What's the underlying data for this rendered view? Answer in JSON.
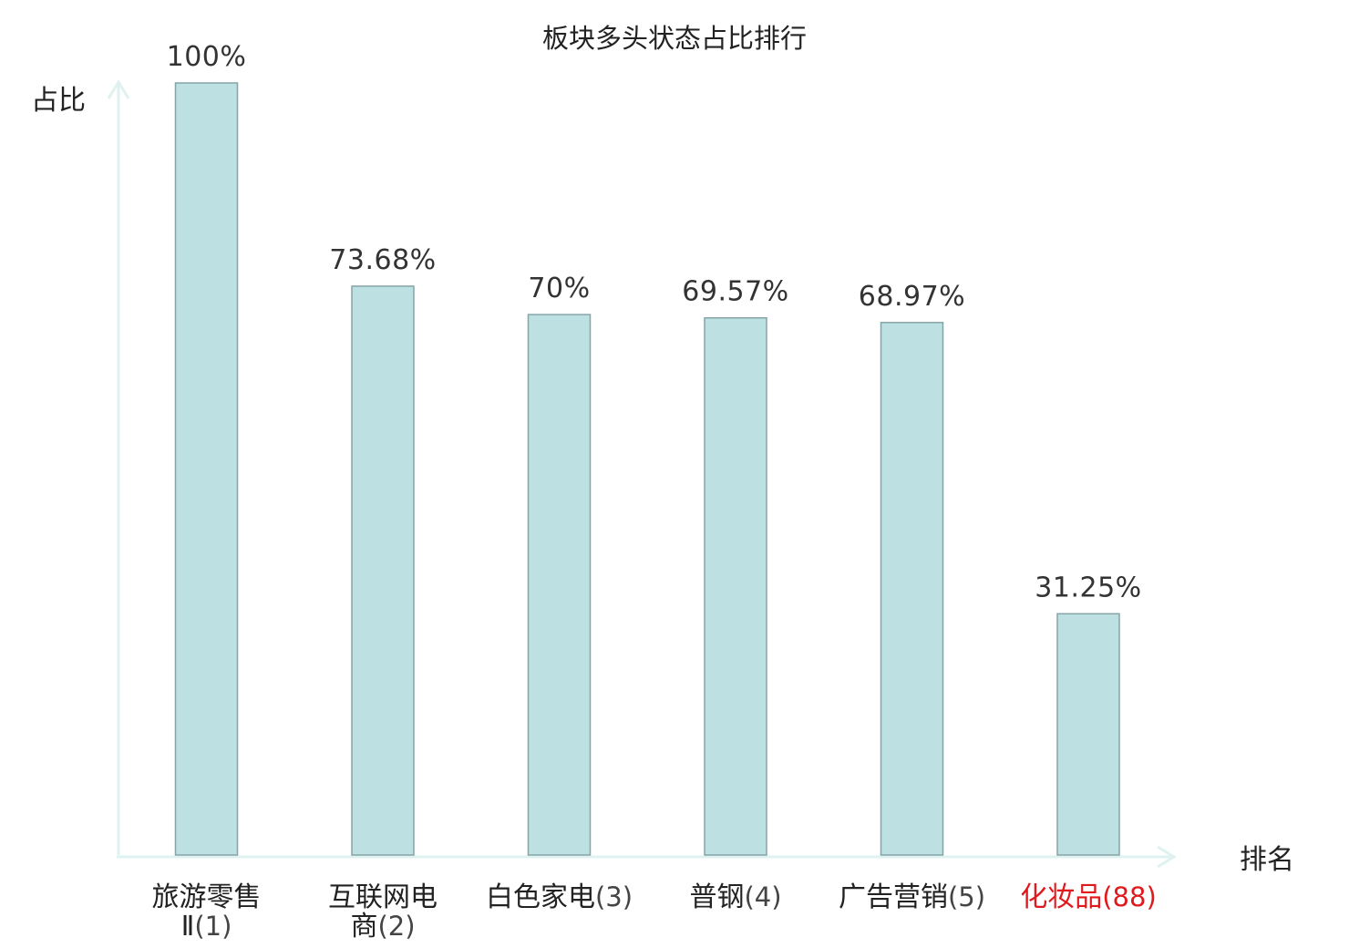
{
  "chart_data": {
    "type": "bar",
    "title": "板块多头状态占比排行",
    "ylabel": "占比",
    "xlabel": "排名",
    "ylim": [
      0,
      100
    ],
    "grid": false,
    "legend": "none",
    "categories": [
      {
        "line1": "旅游零售",
        "line2": "Ⅱ",
        "rank": "(1)",
        "highlight": false
      },
      {
        "line1": "互联网电",
        "line2": "商",
        "rank": "(2)",
        "highlight": false
      },
      {
        "line1": "白色家电",
        "line2": "",
        "rank": "(3)",
        "highlight": false
      },
      {
        "line1": "普钢",
        "line2": "",
        "rank": "(4)",
        "highlight": false
      },
      {
        "line1": "广告营销",
        "line2": "",
        "rank": "(5)",
        "highlight": false
      },
      {
        "line1": "化妆品",
        "line2": "",
        "rank": "(88)",
        "highlight": true
      }
    ],
    "values": [
      100,
      73.68,
      70,
      69.57,
      68.97,
      31.25
    ],
    "value_labels": [
      "100%",
      "73.68%",
      "70%",
      "69.57%",
      "68.97%",
      "31.25%"
    ],
    "colors": {
      "bar_fill": "#bde0e3",
      "bar_stroke": "#86a4a8",
      "axis": "#dff2f0",
      "highlight_text": "#e0191d"
    }
  }
}
